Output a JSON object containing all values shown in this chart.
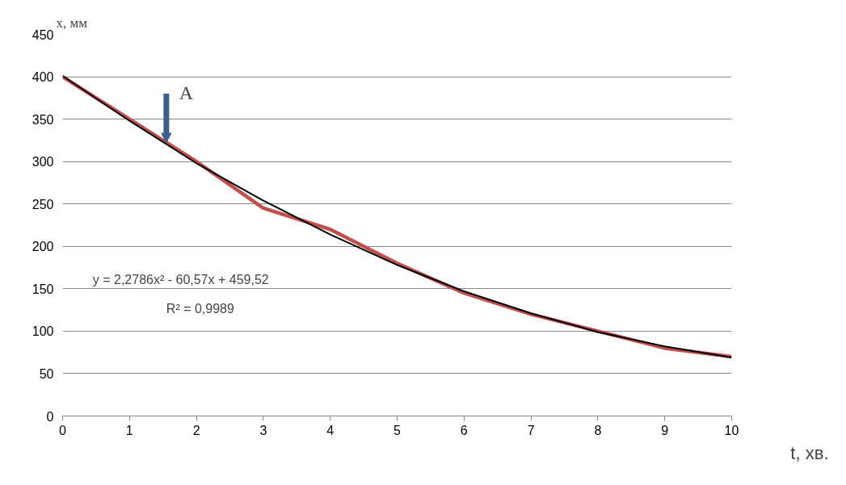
{
  "chart_data": {
    "type": "line",
    "xlabel": "t, хв.",
    "ylabel": "x, мм",
    "x": [
      0,
      1,
      2,
      3,
      4,
      5,
      6,
      7,
      8,
      9,
      10
    ],
    "series": [
      {
        "color": "#c0504d",
        "values": [
          400,
          350,
          300,
          245,
          220,
          180,
          145,
          120,
          100,
          80,
          70
        ]
      },
      {
        "color": "#000000",
        "values": [
          401,
          348,
          298,
          254,
          214,
          178,
          147,
          121,
          99,
          82,
          69
        ]
      }
    ],
    "xlim": [
      0,
      10
    ],
    "ylim": [
      0,
      450
    ],
    "xticks": [
      0,
      1,
      2,
      3,
      4,
      5,
      6,
      7,
      8,
      9,
      10
    ],
    "yticks": [
      0,
      50,
      100,
      150,
      200,
      250,
      300,
      350,
      400,
      450
    ],
    "grid": "y",
    "marker": "none",
    "line_style": "solid",
    "annotations": [
      {
        "text": "A",
        "x": 1.55,
        "y": 322
      },
      "y = 2,2786x² - 60,57x + 459,52",
      "R² = 0,9989"
    ]
  }
}
